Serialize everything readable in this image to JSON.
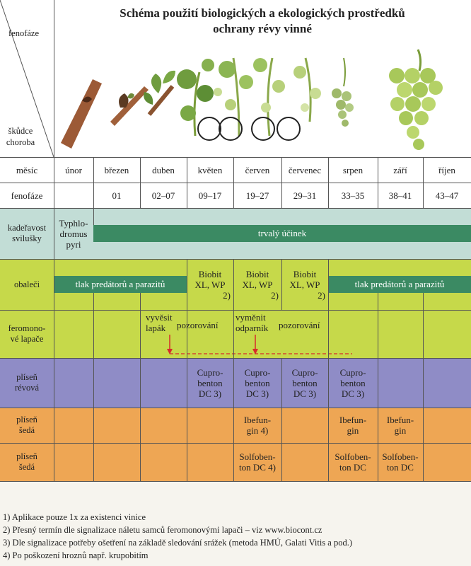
{
  "header": {
    "row_label_top": "fenofáze",
    "row_label_bottom": "škůdce\nchoroba",
    "title_line1": "Schéma použití biologických a ekologických prostředků",
    "title_line2": "ochrany révy vinné"
  },
  "month_row": {
    "label": "měsíc",
    "months": [
      "únor",
      "březen",
      "duben",
      "květen",
      "červen",
      "červenec",
      "srpen",
      "září",
      "říjen"
    ]
  },
  "phase_row": {
    "label": "fenofáze",
    "phases": [
      "",
      "01",
      "02–07",
      "09–17",
      "19–27",
      "29–31",
      "33–35",
      "38–41",
      "43–47"
    ]
  },
  "rows": {
    "mites": {
      "label": "kadeřavost\nsvilušky",
      "predator": "Typhlo-\ndromus\npyri",
      "bar": "trvalý účinek"
    },
    "moths": {
      "label": "obaleči",
      "bar_left": "tlak predátorů a parazitů",
      "biobit1": "Biobit\nXL, WP",
      "biobit1_note": "2)",
      "biobit2": "Biobit\nXL, WP",
      "biobit2_note": "2)",
      "biobit3": "Biobit\nXL, WP",
      "biobit3_note": "2)",
      "bar_right": "tlak predátorů a parazitů"
    },
    "traps": {
      "label": "feromono-\nvé lapače",
      "hang": "vyvěsit\nlapák",
      "observe1": "pozorování",
      "replace": "vyměnit\nodparník",
      "observe2": "pozorování"
    },
    "downy": {
      "label": "plíseň\nrévová",
      "c1": "Cupro-\nbenton\nDC 3)",
      "c2": "Cupro-\nbenton\nDC 3)",
      "c3": "Cupro-\nbenton\nDC 3)",
      "c4": "Cupro-\nbenton\nDC 3)"
    },
    "grey1": {
      "label": "plíseň\nšedá",
      "i1": "Ibefun-\ngin 4)",
      "i2": "Ibefun-\ngin",
      "i3": "Ibefun-\ngin"
    },
    "grey2": {
      "label": "plíseň\nšedá",
      "s1": "Solfoben-\nton DC 4)",
      "s2": "Solfoben-\nton DC",
      "s3": "Solfoben-\nton DC"
    }
  },
  "footnotes": [
    "1) Aplikace pouze 1x za existenci vinice",
    "2) Přesný termín dle signalizace náletu samců feromonovými lapači – viz www.biocont.cz",
    "3) Dle signalizace potřeby ošetření na základě sledování srážek (metoda HMÚ, Galati Vitis a pod.)",
    "4) Po poškození hroznů např. krupobitím"
  ],
  "colors": {
    "mites_bg": "#c2ddd6",
    "mites_bar": "#3b8a63",
    "moths_bg": "#c6d94a",
    "traps_bg": "#c6d94a",
    "downy_bg": "#8f8cc6",
    "grey_bg": "#eea654",
    "trap_line": "#d62b2b"
  },
  "illustrations": [
    "dormant-bud",
    "bud-break",
    "leaf-emergence",
    "inflorescence",
    "flowering",
    "fruit-set",
    "berry-growth",
    "veraison",
    "ripe-cluster"
  ]
}
